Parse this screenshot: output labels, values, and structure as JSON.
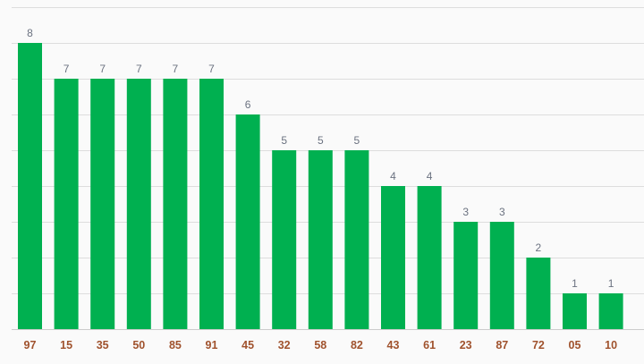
{
  "chart_data": {
    "type": "bar",
    "title": "",
    "xlabel": "",
    "ylabel": "",
    "categories": [
      "97",
      "15",
      "35",
      "50",
      "85",
      "91",
      "45",
      "32",
      "58",
      "82",
      "43",
      "61",
      "23",
      "87",
      "72",
      "05",
      "10"
    ],
    "values": [
      8,
      7,
      7,
      7,
      7,
      7,
      6,
      5,
      5,
      5,
      4,
      4,
      3,
      3,
      2,
      1,
      1
    ],
    "ylim": [
      0,
      9
    ],
    "grid": true,
    "bar_color": "#00b050",
    "category_label_color": "#a0522d",
    "value_label_color": "#6b7280"
  }
}
